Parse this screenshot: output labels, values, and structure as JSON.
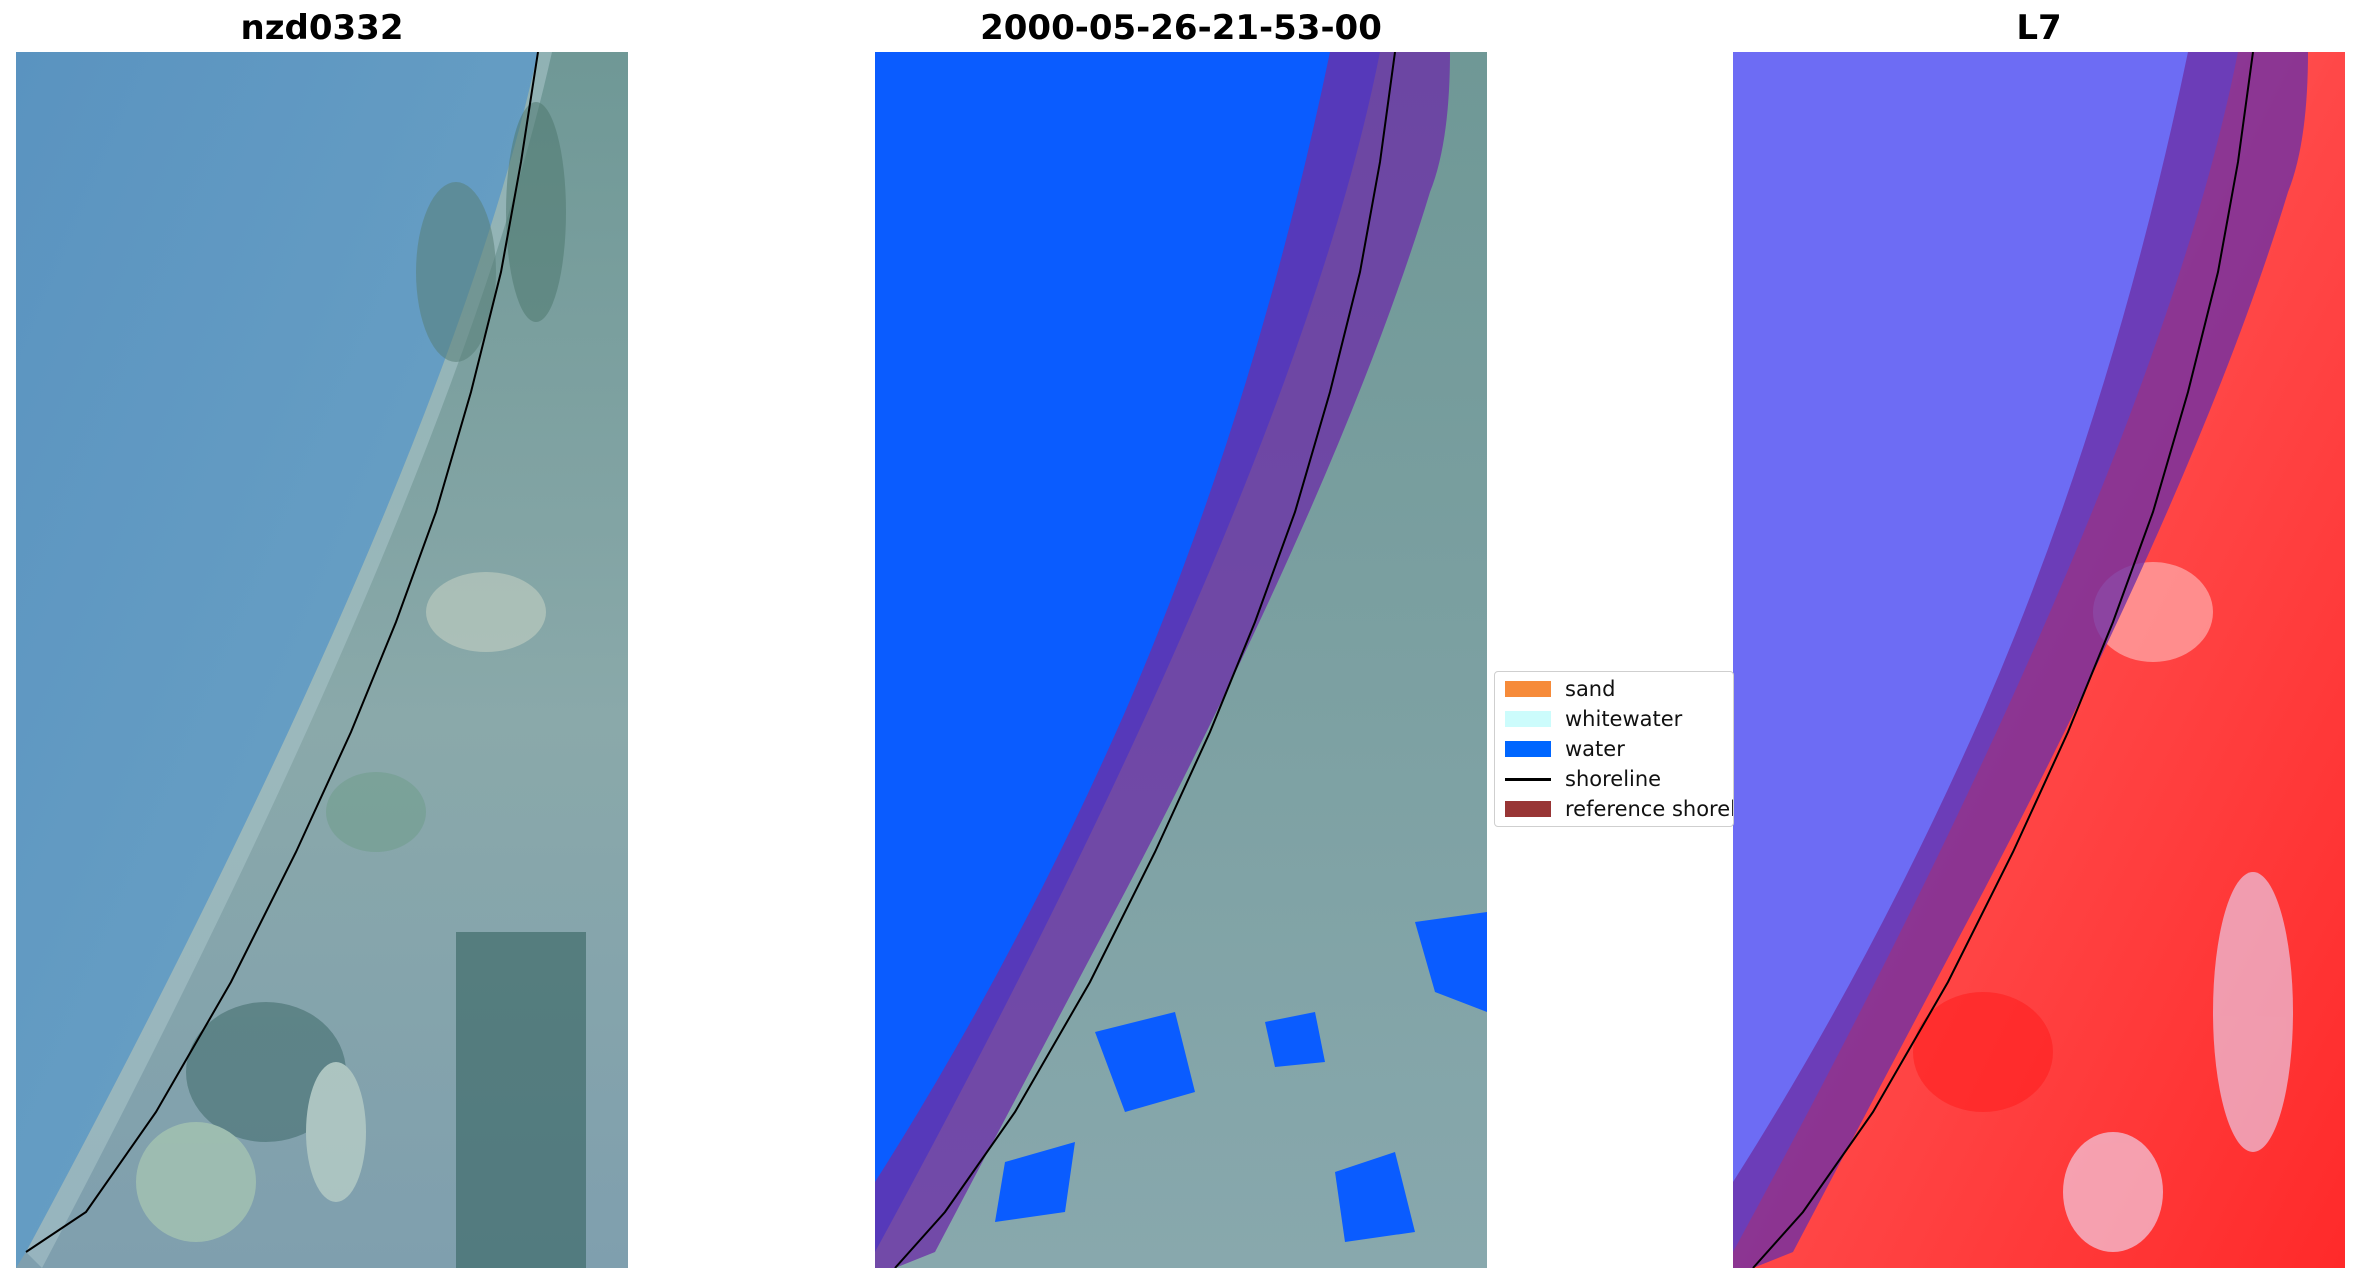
{
  "panels": [
    {
      "title": "nzd0332"
    },
    {
      "title": "2000-05-26-21-53-00"
    },
    {
      "title": "L7"
    }
  ],
  "legend": {
    "items": [
      {
        "label": "sand",
        "color": "#f68b3a",
        "kind": "swatch"
      },
      {
        "label": "whitewater",
        "color": "#ccfcfc",
        "kind": "swatch"
      },
      {
        "label": "water",
        "color": "#0066ff",
        "kind": "swatch"
      },
      {
        "label": "shoreline",
        "color": "#000000",
        "kind": "line"
      },
      {
        "label": "reference shoreline buffer",
        "color": "#983535",
        "kind": "swatch"
      }
    ]
  },
  "colors": {
    "sea_rgb": "#5d95c0",
    "land_rgb": "#7fa2a0",
    "water_class": "#0a5cff",
    "buffer_overlay": "#6b2fa6",
    "index_water": "#6d6cf4",
    "index_land": "#ff3030"
  }
}
